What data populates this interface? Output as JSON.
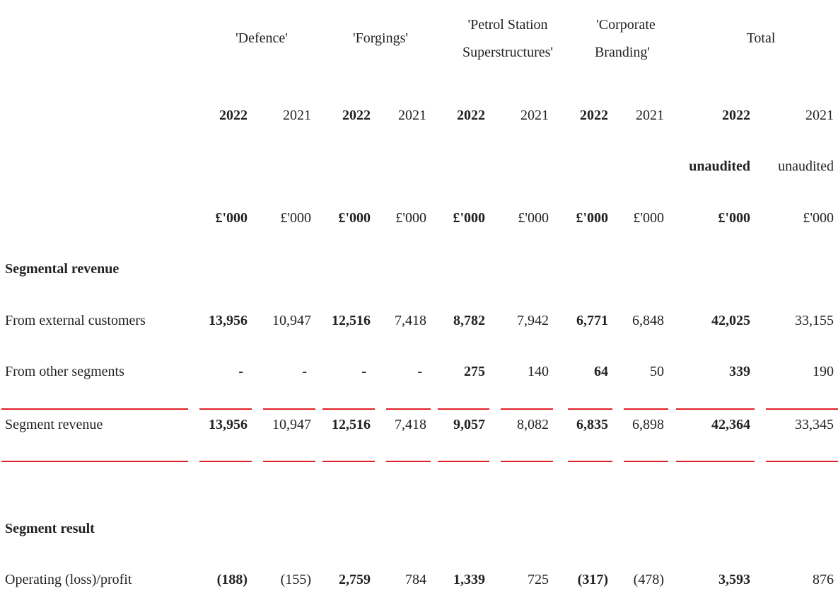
{
  "segments": [
    "'Defence'",
    "'Forgings'",
    "'Petrol Station Superstructures'",
    "'Corporate Branding'",
    "Total"
  ],
  "segment_header_lines": {
    "petrol_1": "'Petrol Station",
    "petrol_2": "Superstructures'",
    "corporate_1": "'Corporate",
    "corporate_2": "Branding'"
  },
  "years": [
    "2022",
    "2021",
    "2022",
    "2021",
    "2022",
    "2021",
    "2022",
    "2021",
    "2022",
    "2021"
  ],
  "audit_note": [
    "",
    "",
    "",
    "",
    "",
    "",
    "",
    "",
    "unaudited",
    "unaudited"
  ],
  "units": [
    "£'000",
    "£'000",
    "£'000",
    "£'000",
    "£'000",
    "£'000",
    "£'000",
    "£'000",
    "£'000",
    "£'000"
  ],
  "sections": {
    "segmental_revenue": "Segmental revenue",
    "segment_result": "Segment result"
  },
  "rows": [
    {
      "label": "From external customers",
      "values": [
        "13,956",
        "10,947",
        "12,516",
        "7,418",
        "8,782",
        "7,942",
        "6,771",
        "6,848",
        "42,025",
        "33,155"
      ]
    },
    {
      "label": "From other segments",
      "values": [
        "-",
        "-",
        "-",
        "-",
        "275",
        "140",
        "64",
        "50",
        "339",
        "190"
      ]
    },
    {
      "label": "Segment revenue",
      "values": [
        "13,956",
        "10,947",
        "12,516",
        "7,418",
        "9,057",
        "8,082",
        "6,835",
        "6,898",
        "42,364",
        "33,345"
      ]
    },
    {
      "label": "Operating (loss)/profit",
      "values": [
        "(188)",
        "(155)",
        "2,759",
        "784",
        "1,339",
        "725",
        "(317)",
        "(478)",
        "3,593",
        "876"
      ]
    }
  ],
  "colors": {
    "rule": "#e01f26",
    "text": "#222222"
  }
}
